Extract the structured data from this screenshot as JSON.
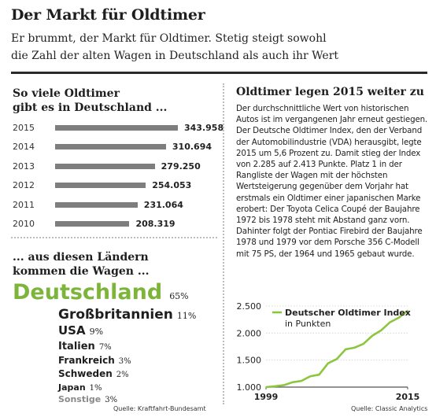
{
  "header": {
    "title": "Der Markt für Oldtimer",
    "subtitle_line1": "Er brummt, der Markt für Oldtimer. Stetig steigt sowohl",
    "subtitle_line2": "die Zahl der alten Wagen in Deutschland als auch ihr Wert"
  },
  "left": {
    "heading_line1": "So viele Oldtimer",
    "heading_line2": "gibt es in Deutschland ...",
    "countries_heading_line1": "... aus diesen Ländern",
    "countries_heading_line2": "kommen die Wagen ...",
    "source": "Quelle: Kraftfahrt-Bundesamt"
  },
  "right": {
    "heading": "Oldtimer legen 2015 weiter zu",
    "paragraph": "Der durchschnittliche Wert von historischen Autos ist im vergangenen Jahr erneut gestiegen. Der Deutsche Oldtimer Index, den der Verband der Automobilindustrie (VDA) herausgibt, legte 2015 um 5,6 Prozent zu. Damit stieg der Index von 2.285 auf 2.413 Punkte. Platz 1 in der Rangliste der Wagen mit der höchsten Wertsteigerung gegenüber dem Vorjahr hat erstmals ein Oldtimer einer japanischen Marke erobert: Der Toyota Celica Coupé der Baujahre 1972 bis 1978 steht mit Abstand ganz vorn. Dahinter folgt der Pontiac Firebird der Baujahre 1978 und 1979 vor dem Porsche 356 C-Modell mit 75 PS, der 1964 und 1965 gebaut wurde.",
    "source": "Quelle: Classic Analytics"
  },
  "colors": {
    "bar": "#7e7e7e",
    "green_large": "#7db53a",
    "green_line": "#8cc63f",
    "gray_small": "#8a8a8a",
    "text_dark": "#1e1e1e"
  },
  "chart_data": [
    {
      "type": "bar",
      "orientation": "horizontal",
      "title": "So viele Oldtimer gibt es in Deutschland ...",
      "categories": [
        "2015",
        "2014",
        "2013",
        "2012",
        "2011",
        "2010"
      ],
      "values": [
        343958,
        310694,
        279250,
        254053,
        231064,
        208319
      ],
      "value_labels": [
        "343.958",
        "310.694",
        "279.250",
        "254.053",
        "231.064",
        "208.319"
      ],
      "source": "Quelle: Kraftfahrt-Bundesamt"
    },
    {
      "type": "table",
      "title": "... aus diesen Ländern kommen die Wagen ...",
      "rows": [
        {
          "country": "Deutschland",
          "percent": "65%",
          "value": 65,
          "color": "#7db53a"
        },
        {
          "country": "Großbritannien",
          "percent": "11%",
          "value": 11,
          "color": "#1e1e1e"
        },
        {
          "country": "USA",
          "percent": "9%",
          "value": 9,
          "color": "#1e1e1e"
        },
        {
          "country": "Italien",
          "percent": "7%",
          "value": 7,
          "color": "#1e1e1e"
        },
        {
          "country": "Frankreich",
          "percent": "3%",
          "value": 3,
          "color": "#1e1e1e"
        },
        {
          "country": "Schweden",
          "percent": "2%",
          "value": 2,
          "color": "#1e1e1e"
        },
        {
          "country": "Japan",
          "percent": "1%",
          "value": 1,
          "color": "#1e1e1e"
        },
        {
          "country": "Sonstige",
          "percent": "3%",
          "value": 3,
          "color": "#8a8a8a"
        }
      ]
    },
    {
      "type": "line",
      "series": [
        {
          "name": "Deutscher Oldtimer Index",
          "x": [
            1999,
            2000,
            2001,
            2002,
            2003,
            2004,
            2005,
            2006,
            2007,
            2008,
            2009,
            2010,
            2011,
            2012,
            2013,
            2014,
            2015
          ],
          "values": [
            1000,
            1015,
            1035,
            1090,
            1115,
            1200,
            1230,
            1440,
            1520,
            1700,
            1730,
            1800,
            1950,
            2050,
            2200,
            2285,
            2413
          ]
        }
      ],
      "legend_line1": "Deutscher Oldtimer Index",
      "legend_line2": "in Punkten",
      "x_tick_labels": [
        "1999",
        "2015"
      ],
      "y_tick_labels": [
        "1.000",
        "1.500",
        "2.000",
        "2.500"
      ],
      "y_ticks": [
        1000,
        1500,
        2000,
        2500
      ],
      "xlim": [
        1999,
        2015
      ],
      "ylim": [
        1000,
        2500
      ],
      "grid": true,
      "legend_position": "top-left",
      "source": "Quelle: Classic Analytics"
    }
  ]
}
